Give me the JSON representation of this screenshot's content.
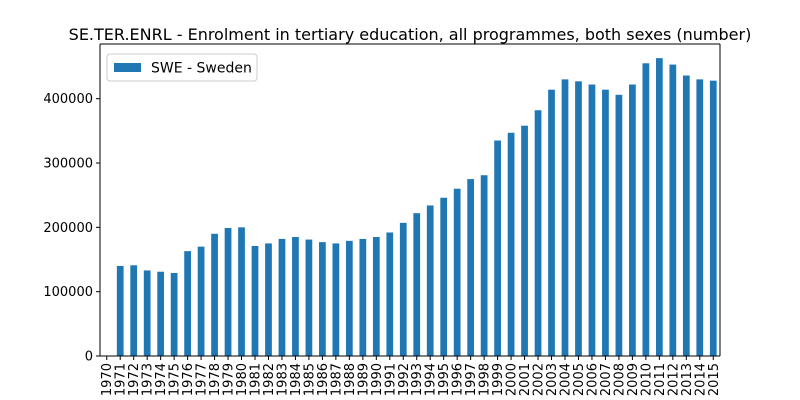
{
  "chart_data": {
    "type": "bar",
    "title": "SE.TER.ENRL - Enrolment in tertiary education, all programmes, both sexes (number)",
    "xlabel": "",
    "ylabel": "",
    "categories": [
      "1970",
      "1971",
      "1972",
      "1973",
      "1974",
      "1975",
      "1976",
      "1977",
      "1978",
      "1979",
      "1980",
      "1981",
      "1982",
      "1983",
      "1984",
      "1985",
      "1986",
      "1987",
      "1988",
      "1989",
      "1990",
      "1991",
      "1992",
      "1993",
      "1994",
      "1995",
      "1996",
      "1997",
      "1998",
      "1999",
      "2000",
      "2001",
      "2002",
      "2003",
      "2004",
      "2005",
      "2006",
      "2007",
      "2008",
      "2009",
      "2010",
      "2011",
      "2012",
      "2013",
      "2014",
      "2015"
    ],
    "series": [
      {
        "name": "SWE - Sweden",
        "color": "#1f77b4",
        "values": [
          null,
          140000,
          141000,
          133000,
          131000,
          129000,
          163000,
          170000,
          190000,
          199000,
          200000,
          171000,
          175000,
          182000,
          185000,
          181000,
          177000,
          175000,
          179000,
          182000,
          185000,
          192000,
          207000,
          222000,
          234000,
          246000,
          260000,
          275000,
          281000,
          335000,
          347000,
          358000,
          382000,
          414000,
          430000,
          427000,
          422000,
          414000,
          406000,
          422000,
          455000,
          463000,
          453000,
          436000,
          430000,
          428000
        ]
      }
    ],
    "ylim": [
      0,
      485000
    ],
    "yticks": [
      0,
      100000,
      200000,
      300000,
      400000
    ],
    "ytick_labels": [
      "0",
      "100000",
      "200000",
      "300000",
      "400000"
    ],
    "grid": false,
    "legend_position": "top-left"
  }
}
